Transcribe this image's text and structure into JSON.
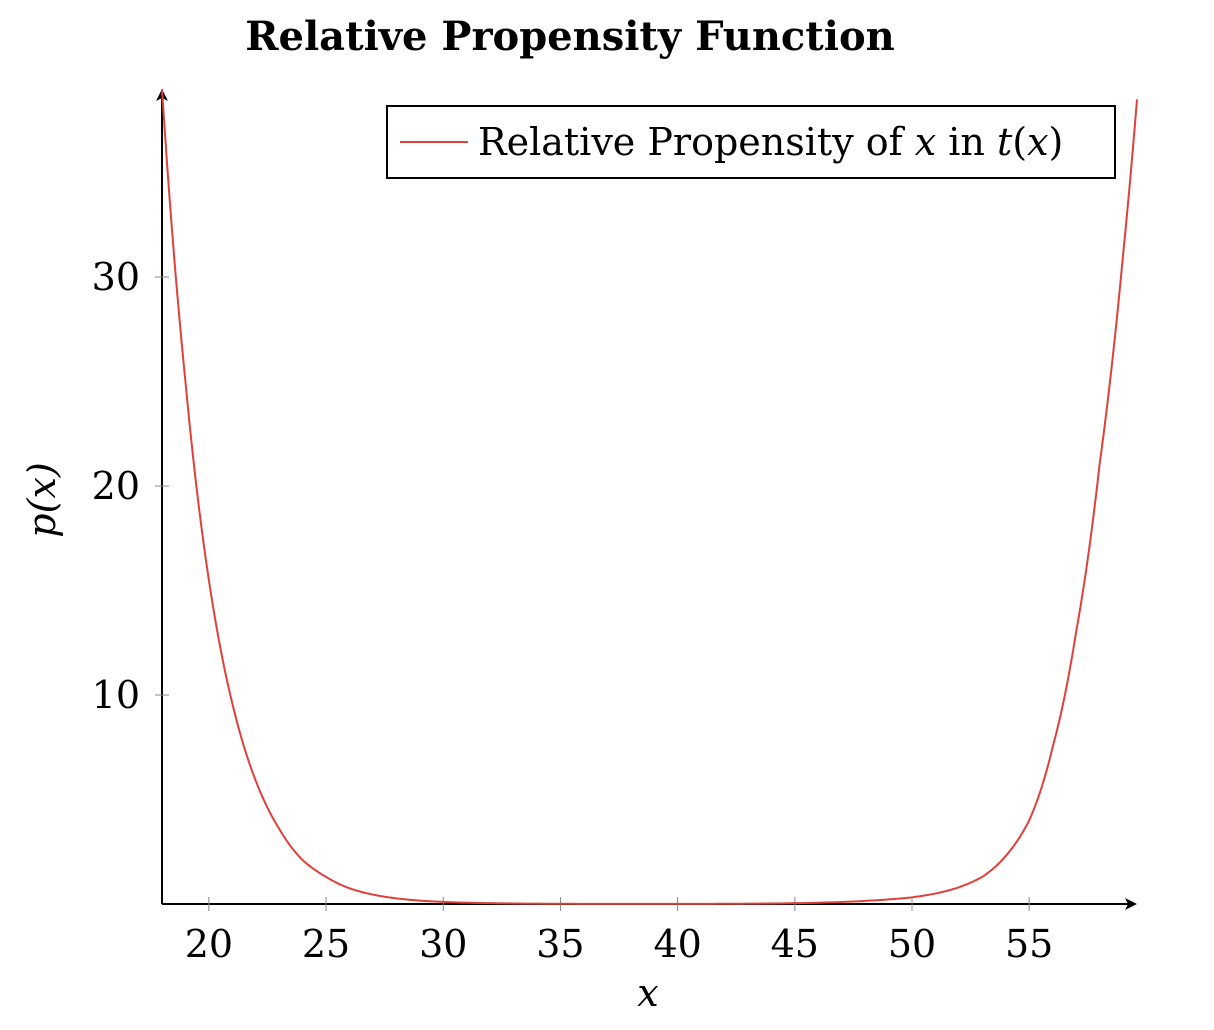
{
  "chart_data": {
    "type": "line",
    "title": "Relative Propensity Function",
    "xlabel": "x",
    "ylabel": "p(x)",
    "xlim": [
      18,
      59.6
    ],
    "ylim": [
      0,
      39
    ],
    "x_ticks": [
      20,
      25,
      30,
      35,
      40,
      45,
      50,
      55
    ],
    "x_tick_labels": [
      "20",
      "25",
      "30",
      "35",
      "40",
      "45",
      "50",
      "55"
    ],
    "y_ticks": [
      10,
      20,
      30
    ],
    "y_tick_labels": [
      "10",
      "20",
      "30"
    ],
    "grid": false,
    "legend_position": "top-right",
    "legend": {
      "prefix": "Relative Propensity of ",
      "var": "x",
      "mid": " in ",
      "func": "t",
      "open": "(",
      "arg": "x",
      "close": ")"
    },
    "series": [
      {
        "name": "Relative Propensity of x in t(x)",
        "color": "#e0403a",
        "x": [
          18,
          19,
          20,
          21,
          22,
          23,
          24,
          25,
          26,
          27,
          28,
          30,
          32,
          35,
          38,
          40,
          42,
          45,
          48,
          50,
          51,
          52,
          53,
          54,
          55,
          56,
          57,
          58,
          59,
          59.6
        ],
        "y": [
          39,
          25,
          15.5,
          9.6,
          5.9,
          3.6,
          2.1,
          1.3,
          0.75,
          0.45,
          0.27,
          0.1,
          0.04,
          0.01,
          0.005,
          0.005,
          0.01,
          0.04,
          0.15,
          0.32,
          0.5,
          0.8,
          1.3,
          2.3,
          4.0,
          7.5,
          13,
          21,
          31,
          38.5
        ]
      }
    ]
  }
}
